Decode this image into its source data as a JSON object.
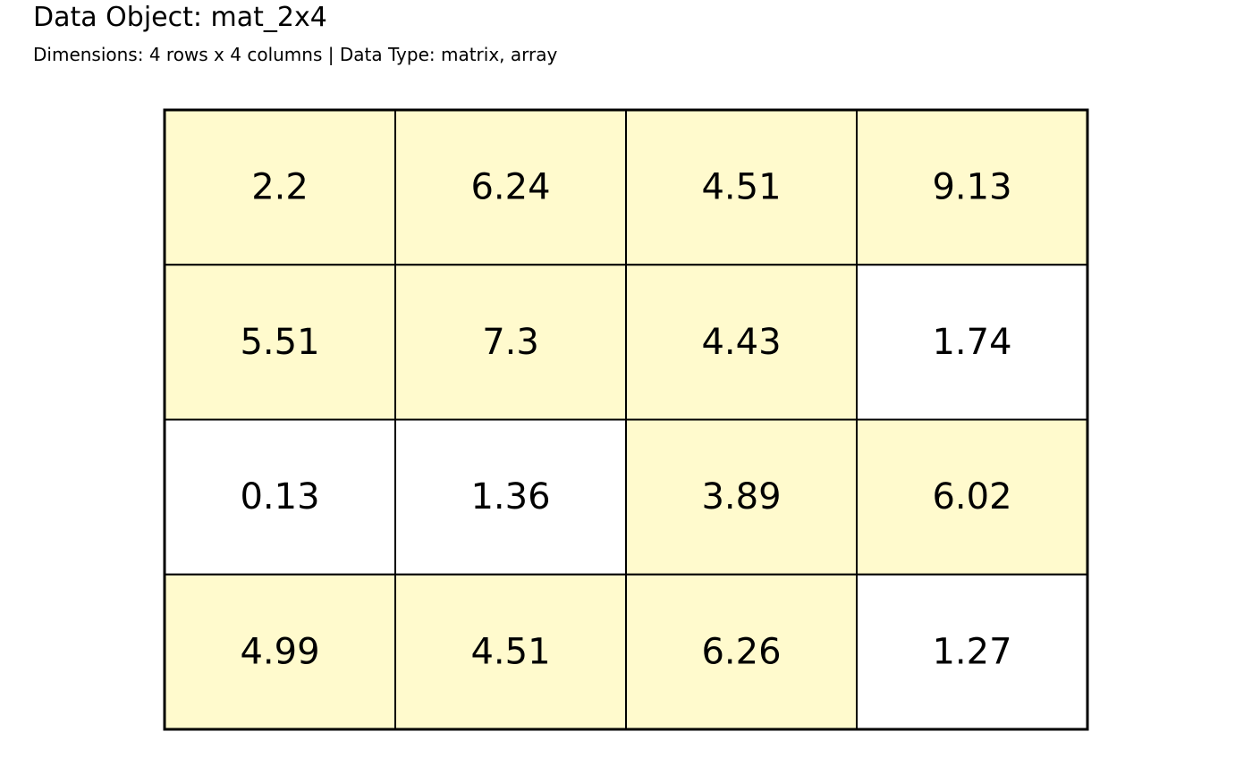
{
  "header": {
    "title": "Data Object: mat_2x4",
    "subtitle": "Dimensions: 4 rows x 4 columns | Data Type: matrix, array"
  },
  "colors": {
    "highlight": "#FFFACD",
    "plain": "#FFFFFF",
    "border": "#000000"
  },
  "chart_data": {
    "type": "table",
    "rows": [
      [
        {
          "text": "2.2",
          "highlight": true
        },
        {
          "text": "6.24",
          "highlight": true
        },
        {
          "text": "4.51",
          "highlight": true
        },
        {
          "text": "9.13",
          "highlight": true
        }
      ],
      [
        {
          "text": "5.51",
          "highlight": true
        },
        {
          "text": "7.3",
          "highlight": true
        },
        {
          "text": "4.43",
          "highlight": true
        },
        {
          "text": "1.74",
          "highlight": false
        }
      ],
      [
        {
          "text": "0.13",
          "highlight": false
        },
        {
          "text": "1.36",
          "highlight": false
        },
        {
          "text": "3.89",
          "highlight": true
        },
        {
          "text": "6.02",
          "highlight": true
        }
      ],
      [
        {
          "text": "4.99",
          "highlight": true
        },
        {
          "text": "4.51",
          "highlight": true
        },
        {
          "text": "6.26",
          "highlight": true
        },
        {
          "text": "1.27",
          "highlight": false
        }
      ]
    ]
  }
}
